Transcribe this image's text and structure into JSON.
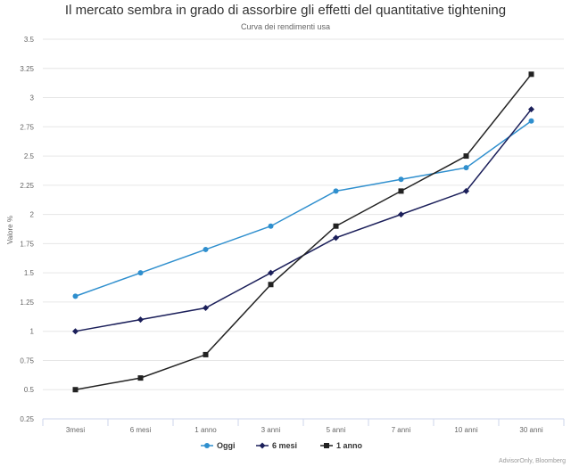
{
  "chart_data": {
    "type": "line",
    "title": "Il mercato sembra in grado di assorbire gli effetti del quantitative tightening",
    "subtitle": "Curva dei rendimenti usa",
    "xlabel": "",
    "ylabel": "Valore %",
    "categories": [
      "3mesi",
      "6 mesi",
      "1 anno",
      "3 anni",
      "5 anni",
      "7 anni",
      "10 anni",
      "30 anni"
    ],
    "y_ticks": [
      "0.25",
      "0.5",
      "0.75",
      "1",
      "1.25",
      "1.5",
      "1.75",
      "2",
      "2.25",
      "2.5",
      "2.75",
      "3",
      "3.25",
      "3.5"
    ],
    "ylim": [
      0.25,
      3.5
    ],
    "grid": true,
    "legend_position": "bottom-center",
    "series": [
      {
        "name": "Oggi",
        "color": "#2f8fce",
        "marker": "circle",
        "values": [
          1.3,
          1.5,
          1.7,
          1.9,
          2.2,
          2.3,
          2.4,
          2.8
        ]
      },
      {
        "name": "6 mesi",
        "color": "#1b1f5a",
        "marker": "diamond",
        "values": [
          1.0,
          1.1,
          1.2,
          1.5,
          1.8,
          2.0,
          2.2,
          2.9
        ]
      },
      {
        "name": "1 anno",
        "color": "#222222",
        "marker": "square",
        "values": [
          0.5,
          0.6,
          0.8,
          1.4,
          1.9,
          2.2,
          2.5,
          3.2
        ]
      }
    ],
    "credits": "AdvisorOnly, Bloomberg"
  }
}
